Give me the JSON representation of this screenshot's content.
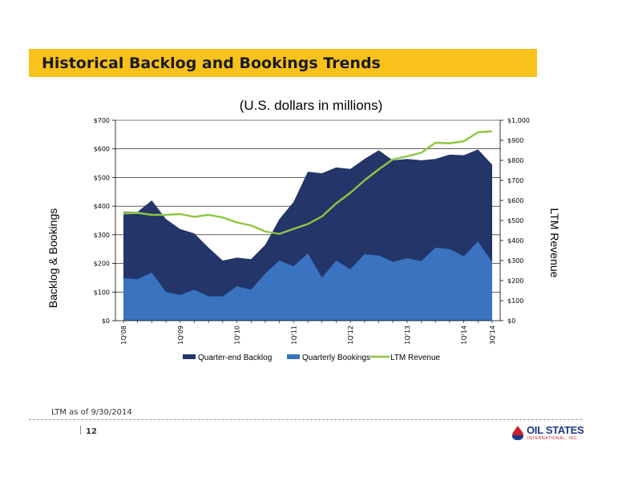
{
  "header": {
    "title": "Historical Backlog and Bookings Trends"
  },
  "footer": {
    "note": "LTM as of 9/30/2014",
    "page": "12",
    "logo_text": "OIL STATES",
    "logo_sub": "INTERNATIONAL, INC."
  },
  "colors": {
    "backlog": "#233569",
    "bookings": "#3a73c0",
    "revenue": "#8ec640",
    "title_bar": "#f9c21b"
  },
  "chart_data": {
    "type": "area",
    "title": "(U.S. dollars in millions)",
    "ylabel": "Backlog & Bookings",
    "y2label": "LTM Revenue",
    "ylim": [
      0,
      700
    ],
    "y2lim": [
      0,
      1000
    ],
    "yticks": [
      0,
      100,
      200,
      300,
      400,
      500,
      600,
      700
    ],
    "yticklabels": [
      "$0",
      "$100",
      "$200",
      "$300",
      "$400",
      "$500",
      "$600",
      "$700"
    ],
    "y2ticks": [
      0,
      100,
      200,
      300,
      400,
      500,
      600,
      700,
      800,
      900,
      1000
    ],
    "y2ticklabels": [
      "$0",
      "$100",
      "$200",
      "$300",
      "$400",
      "$500",
      "$600",
      "$700",
      "$800",
      "$900",
      "$1,000"
    ],
    "grid": true,
    "legend_position": "bottom",
    "x_labels": [
      {
        "index": 0,
        "label": "1Q'08"
      },
      {
        "index": 4,
        "label": "1Q'09"
      },
      {
        "index": 8,
        "label": "1Q'10"
      },
      {
        "index": 12,
        "label": "1Q'11"
      },
      {
        "index": 16,
        "label": "1Q'12"
      },
      {
        "index": 20,
        "label": "1Q'13"
      },
      {
        "index": 24,
        "label": "1Q'14"
      },
      {
        "index": 26,
        "label": "3Q'14"
      }
    ],
    "series": [
      {
        "name": "Quarter-end Backlog",
        "type": "area",
        "axis": "left",
        "values": [
          380,
          380,
          420,
          355,
          320,
          305,
          255,
          210,
          220,
          215,
          265,
          355,
          415,
          520,
          515,
          535,
          530,
          565,
          595,
          560,
          565,
          560,
          565,
          580,
          578,
          598,
          545
        ]
      },
      {
        "name": "Quarterly Bookings",
        "type": "area",
        "axis": "left",
        "values": [
          148,
          145,
          168,
          100,
          90,
          108,
          85,
          85,
          120,
          108,
          165,
          210,
          190,
          235,
          150,
          210,
          180,
          232,
          228,
          205,
          218,
          208,
          255,
          250,
          225,
          277,
          205
        ]
      },
      {
        "name": "LTM Revenue",
        "type": "line",
        "axis": "right",
        "values": [
          535,
          538,
          528,
          528,
          532,
          518,
          528,
          515,
          490,
          475,
          445,
          433,
          458,
          482,
          520,
          585,
          638,
          700,
          755,
          805,
          820,
          838,
          888,
          885,
          895,
          940,
          945
        ]
      }
    ]
  }
}
